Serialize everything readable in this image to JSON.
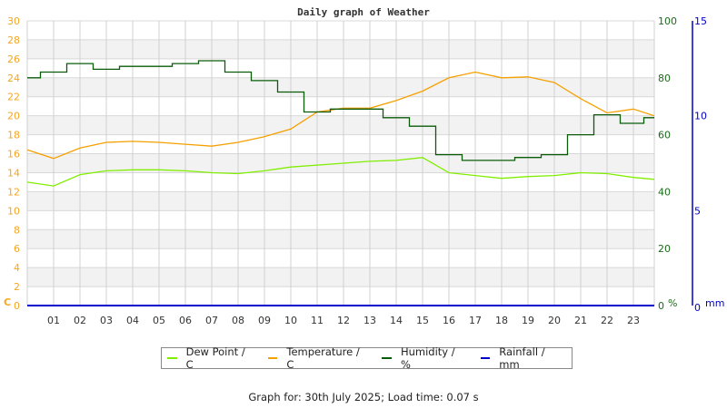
{
  "chart": {
    "title": "Daily graph of Weather",
    "left_axis_unit": "C",
    "right_axis_unit": "%",
    "rain_axis_unit": "mm",
    "footer": "Graph for: 30th July 2025; Load time: 0.07 s"
  },
  "legend": [
    {
      "label": "Dew Point / C",
      "color": "#80ee00"
    },
    {
      "label": "Temperature / C",
      "color": "#f5a000"
    },
    {
      "label": "Humidity / %",
      "color": "#0a5c0a"
    },
    {
      "label": "Rainfall / mm",
      "color": "#0000cc"
    }
  ],
  "chart_data": {
    "type": "line",
    "title": "Daily graph of Weather",
    "xlabel": "",
    "ylabel": "C",
    "x": [
      0,
      1,
      2,
      3,
      4,
      5,
      6,
      7,
      8,
      9,
      10,
      11,
      12,
      13,
      14,
      15,
      16,
      17,
      18,
      19,
      20,
      21,
      22,
      23,
      23.9
    ],
    "x_tick_labels": [
      "01",
      "02",
      "03",
      "04",
      "05",
      "06",
      "07",
      "08",
      "09",
      "10",
      "11",
      "12",
      "13",
      "14",
      "15",
      "16",
      "17",
      "18",
      "19",
      "20",
      "21",
      "22",
      "23"
    ],
    "axes": {
      "left": {
        "label": "C",
        "range": [
          0,
          30
        ],
        "ticks": [
          0,
          2,
          4,
          6,
          8,
          10,
          12,
          14,
          16,
          18,
          20,
          22,
          24,
          26,
          28,
          30
        ],
        "color": "#f5a623"
      },
      "right": {
        "label": "%",
        "range": [
          0,
          100
        ],
        "ticks": [
          0,
          20,
          40,
          60,
          80,
          100
        ],
        "color": "#1a6b1a"
      },
      "rain": {
        "label": "mm",
        "range": [
          0,
          15
        ],
        "ticks": [
          0,
          5,
          10,
          15
        ],
        "color": "#0000cc"
      }
    },
    "grid": true,
    "legend_position": "bottom",
    "series": [
      {
        "name": "Dew Point / C",
        "axis": "left",
        "color": "#80ee00",
        "values": [
          13.0,
          12.6,
          13.8,
          14.2,
          14.3,
          14.3,
          14.2,
          14.0,
          13.9,
          14.2,
          14.6,
          14.8,
          15.0,
          15.2,
          15.3,
          15.6,
          14.0,
          13.7,
          13.4,
          13.6,
          13.7,
          14.0,
          13.9,
          13.5,
          13.3
        ]
      },
      {
        "name": "Temperature / C",
        "axis": "left",
        "color": "#f5a000",
        "values": [
          16.4,
          15.5,
          16.6,
          17.2,
          17.3,
          17.2,
          17.0,
          16.8,
          17.2,
          17.8,
          18.6,
          20.4,
          20.8,
          20.8,
          21.6,
          22.6,
          24.0,
          24.6,
          24.0,
          24.1,
          23.5,
          21.8,
          20.3,
          20.7,
          20.0
        ]
      },
      {
        "name": "Humidity / %",
        "axis": "right",
        "color": "#0a5c0a",
        "values": [
          80,
          82,
          85,
          83,
          84,
          84,
          85,
          86,
          82,
          79,
          75,
          68,
          69,
          69,
          66,
          63,
          53,
          51,
          51,
          52,
          53,
          60,
          67,
          64,
          66
        ]
      },
      {
        "name": "Rainfall / mm",
        "axis": "rain",
        "color": "#0000cc",
        "values": [
          0,
          0,
          0,
          0,
          0,
          0,
          0,
          0,
          0,
          0,
          0,
          0,
          0,
          0,
          0,
          0,
          0,
          0,
          0,
          0,
          0,
          0,
          0,
          0,
          0
        ]
      }
    ]
  }
}
